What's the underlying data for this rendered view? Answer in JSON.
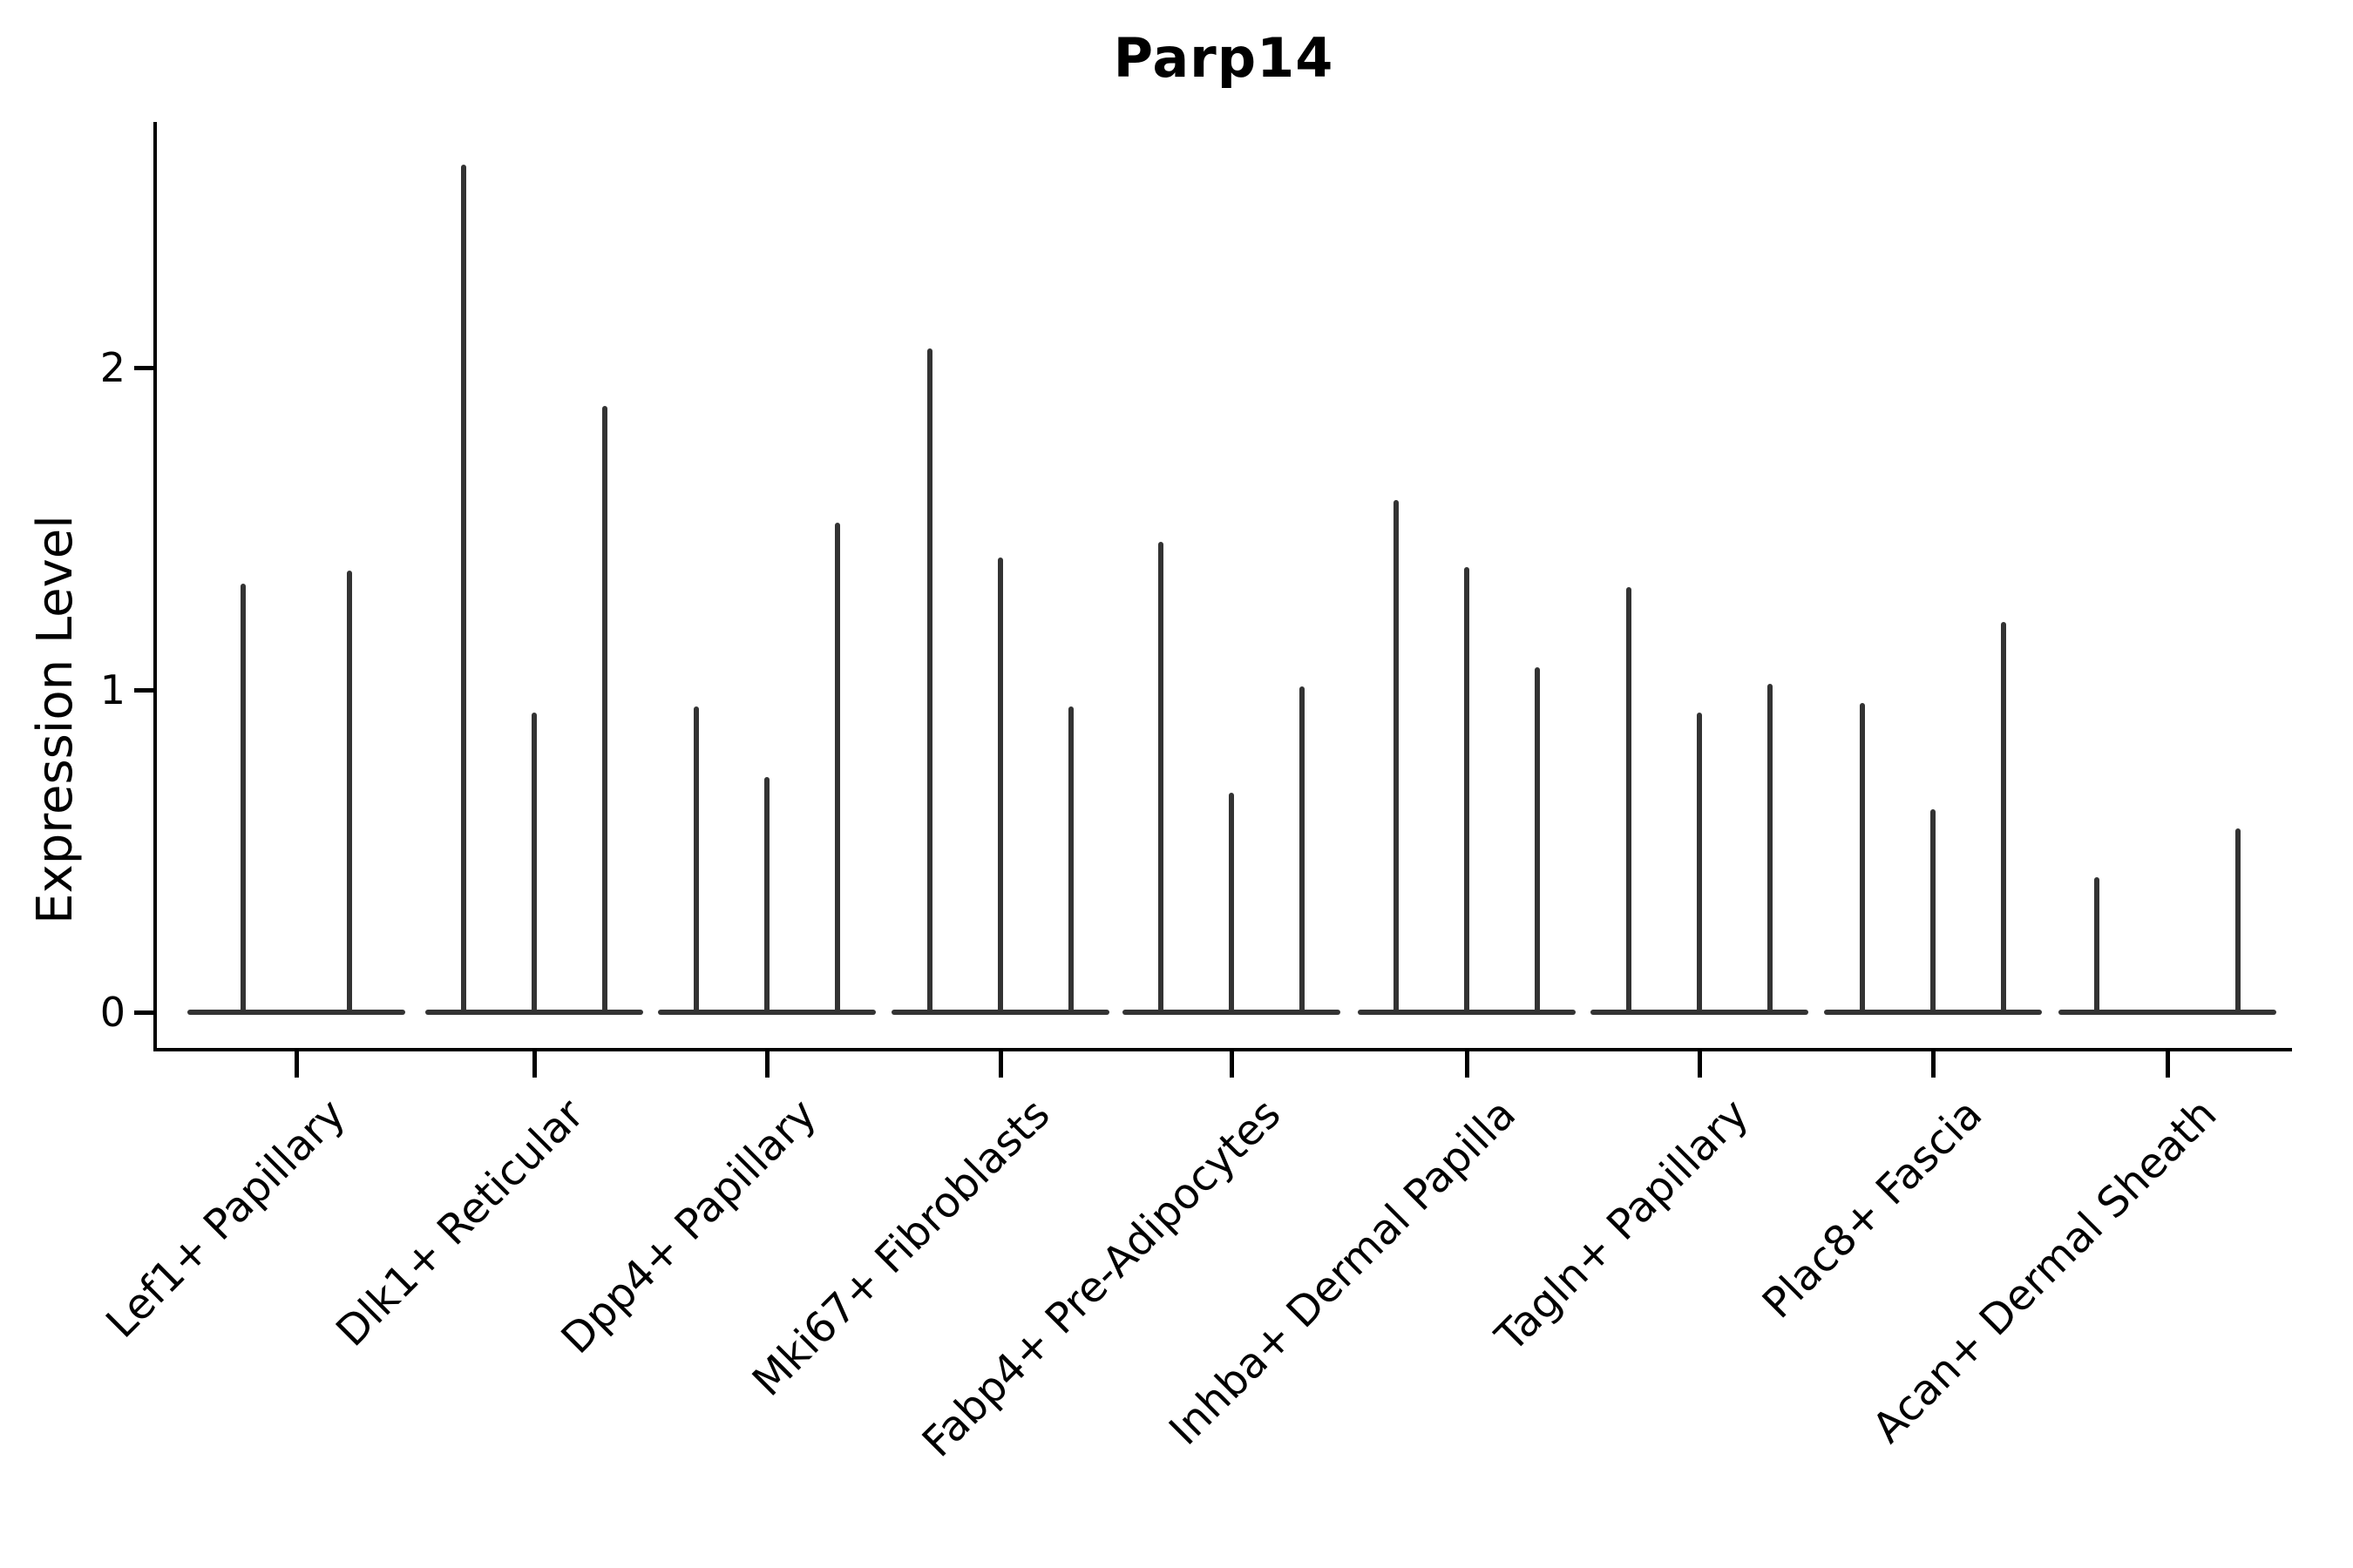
{
  "title": "Parp14",
  "y_axis": {
    "label": "Expression Level",
    "ticks": [
      "0",
      "1",
      "2"
    ]
  },
  "chart_data": {
    "type": "violin",
    "title": "Parp14",
    "xlabel": "",
    "ylabel": "Expression Level",
    "ylim": [
      0,
      2.76
    ],
    "yticks": [
      0,
      1,
      2
    ],
    "grid": false,
    "legend": "none",
    "description": "Single-cell expression violin plot; each category holds 2-3 very thin violins (mass concentrated at 0 with a narrow spike up to the max expression value).",
    "categories": [
      "Lef1+ Papillary",
      "Dlk1+ Reticular",
      "Dpp4+ Papillary",
      "Mki67+ Fibroblasts",
      "Fabp4+ Pre-Adipocytes",
      "Inhba+ Dermal Papilla",
      "Tagln+ Papillary",
      "Plac8+ Fascia",
      "Acan+ Dermal Sheath"
    ],
    "groups": [
      {
        "category": "Lef1+ Papillary",
        "violin_max_values": [
          1.33,
          1.37
        ]
      },
      {
        "category": "Dlk1+ Reticular",
        "violin_max_values": [
          2.63,
          0.93,
          1.88
        ]
      },
      {
        "category": "Dpp4+ Papillary",
        "violin_max_values": [
          0.95,
          0.73,
          1.52
        ]
      },
      {
        "category": "Mki67+ Fibroblasts",
        "violin_max_values": [
          2.06,
          1.41,
          0.95
        ]
      },
      {
        "category": "Fabp4+ Pre-Adipocytes",
        "violin_max_values": [
          1.46,
          0.68,
          1.01
        ]
      },
      {
        "category": "Inhba+ Dermal Papilla",
        "violin_max_values": [
          1.59,
          1.38,
          1.07
        ]
      },
      {
        "category": "Tagln+ Papillary",
        "violin_max_values": [
          1.32,
          0.93,
          1.02
        ]
      },
      {
        "category": "Plac8+ Fascia",
        "violin_max_values": [
          0.96,
          0.63,
          1.21
        ]
      },
      {
        "category": "Acan+ Dermal Sheath",
        "violin_max_values": [
          0.42,
          0.0,
          0.57
        ]
      }
    ],
    "colors": {
      "violin": "#333333",
      "axis": "#000000",
      "background": "#ffffff"
    }
  }
}
